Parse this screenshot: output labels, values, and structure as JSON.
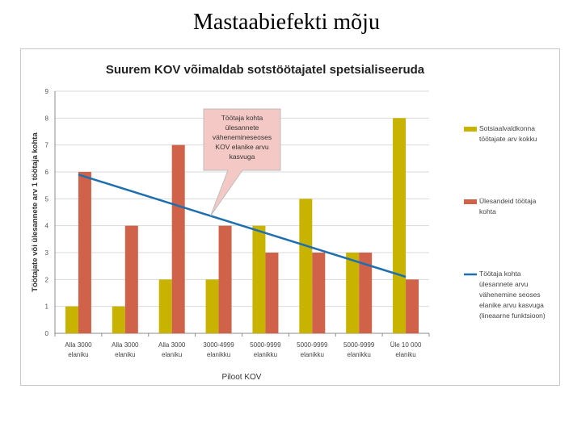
{
  "slide": {
    "title": "Mastaabiefekti mõju"
  },
  "chart_data": {
    "type": "bar",
    "title": "Suurem KOV võimaldab sotstöötajatel spetsialiseeruda",
    "xlabel": "Piloot KOV",
    "ylabel": "Töötajate või ülesannete arv 1 töötaja kohta",
    "ylim": [
      0,
      9
    ],
    "yticks": [
      "0",
      "1",
      "2",
      "3",
      "4",
      "5",
      "6",
      "7",
      "8",
      "9"
    ],
    "grid": true,
    "legend_position": "right",
    "categories": [
      [
        "Alla 3000",
        "elaniku"
      ],
      [
        "Alla 3000",
        "elaniku"
      ],
      [
        "Alla 3000",
        "elaniku"
      ],
      [
        "3000-4999",
        "elanikku"
      ],
      [
        "5000-9999",
        "elanikku"
      ],
      [
        "5000-9999",
        "elanikku"
      ],
      [
        "5000-9999",
        "elanikku"
      ],
      [
        "Üle 10 000",
        "elaniku"
      ]
    ],
    "series": [
      {
        "name": "Sotsiaalvaldkonna töötajate arv kokku",
        "legend_lines": [
          "Sotsiaalvaldkonna",
          "töötajate arv kokku"
        ],
        "color": "#c8b400",
        "values": [
          1,
          1,
          2,
          2,
          4,
          5,
          3,
          8
        ]
      },
      {
        "name": "Ülesandeid töötaja kohta",
        "legend_lines": [
          "Ülesandeid töötaja",
          "kohta"
        ],
        "color": "#d0624a",
        "values": [
          6,
          4,
          7,
          4,
          3,
          3,
          3,
          2
        ]
      }
    ],
    "trendline": {
      "name": "Töötaja kohta ülesannete arvu vähenemine seoses elanike arvu kasvuga (lineaarne funktsioon)",
      "legend_lines": [
        "Töötaja kohta",
        "ülesannete arvu",
        "vähenemine seoses",
        "elanike arvu kasvuga",
        "(lineaarne funktsioon)"
      ],
      "color": "#1f6fb0",
      "start": {
        "x_index": 0,
        "y": 5.9
      },
      "end": {
        "x_index": 7,
        "y": 2.1
      }
    },
    "annotation": {
      "lines": [
        "Töötaja kohta",
        "ülesannete",
        "vähenemineseoses",
        "KOV elanike arvu",
        "kasvuga"
      ],
      "fill": "#f4c9c5"
    }
  }
}
